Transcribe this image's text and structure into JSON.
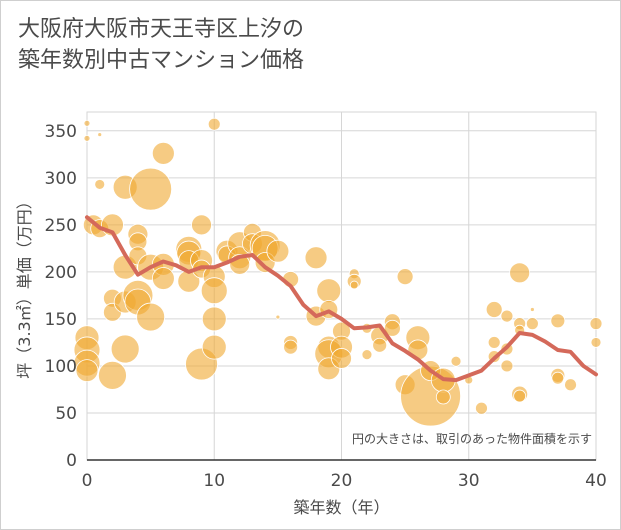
{
  "title": "大阪府大阪市天王寺区上汐の\n築年数別中古マンション価格",
  "chart_data": {
    "type": "scatter",
    "title": "大阪府大阪市天王寺区上汐の築年数別中古マンション価格",
    "xlabel": "築年数（年）",
    "ylabel": "坪（3.3㎡）単価（万円）",
    "xlim": [
      0,
      40
    ],
    "ylim": [
      0,
      370
    ],
    "xticks": [
      0,
      10,
      20,
      30,
      40
    ],
    "yticks": [
      0,
      50,
      100,
      150,
      200,
      250,
      300,
      350
    ],
    "grid": true,
    "annotation": "円の大きさは、取引のあった物件面積を示す",
    "colors": {
      "bubble": "#f0a830",
      "line": "#d4695a",
      "grid": "#d6d6d6"
    },
    "bubbles": [
      {
        "x": 0,
        "y": 358,
        "s": 3
      },
      {
        "x": 0,
        "y": 342,
        "s": 3
      },
      {
        "x": 1,
        "y": 346,
        "s": 2
      },
      {
        "x": 1,
        "y": 293,
        "s": 5
      },
      {
        "x": 0.5,
        "y": 250,
        "s": 10
      },
      {
        "x": 1,
        "y": 246,
        "s": 9
      },
      {
        "x": 2,
        "y": 250,
        "s": 11
      },
      {
        "x": 0,
        "y": 130,
        "s": 12
      },
      {
        "x": 0,
        "y": 117,
        "s": 13
      },
      {
        "x": 0,
        "y": 103,
        "s": 13
      },
      {
        "x": 0,
        "y": 95,
        "s": 11
      },
      {
        "x": 2,
        "y": 90,
        "s": 14
      },
      {
        "x": 2,
        "y": 172,
        "s": 9
      },
      {
        "x": 2,
        "y": 157,
        "s": 9
      },
      {
        "x": 3,
        "y": 290,
        "s": 12
      },
      {
        "x": 3,
        "y": 168,
        "s": 11
      },
      {
        "x": 3,
        "y": 118,
        "s": 14
      },
      {
        "x": 3,
        "y": 205,
        "s": 12
      },
      {
        "x": 4,
        "y": 240,
        "s": 10
      },
      {
        "x": 4,
        "y": 232,
        "s": 9
      },
      {
        "x": 4,
        "y": 217,
        "s": 9
      },
      {
        "x": 4,
        "y": 175,
        "s": 15
      },
      {
        "x": 4,
        "y": 168,
        "s": 13
      },
      {
        "x": 5,
        "y": 288,
        "s": 21
      },
      {
        "x": 5,
        "y": 205,
        "s": 13
      },
      {
        "x": 5,
        "y": 152,
        "s": 14
      },
      {
        "x": 6,
        "y": 326,
        "s": 11
      },
      {
        "x": 6,
        "y": 208,
        "s": 11
      },
      {
        "x": 6,
        "y": 193,
        "s": 11
      },
      {
        "x": 8,
        "y": 224,
        "s": 13
      },
      {
        "x": 8,
        "y": 220,
        "s": 12
      },
      {
        "x": 8,
        "y": 212,
        "s": 10
      },
      {
        "x": 8,
        "y": 190,
        "s": 11
      },
      {
        "x": 9,
        "y": 250,
        "s": 10
      },
      {
        "x": 9,
        "y": 212,
        "s": 11
      },
      {
        "x": 9,
        "y": 203,
        "s": 9
      },
      {
        "x": 9,
        "y": 102,
        "s": 16
      },
      {
        "x": 10,
        "y": 357,
        "s": 6
      },
      {
        "x": 10,
        "y": 195,
        "s": 11
      },
      {
        "x": 10,
        "y": 180,
        "s": 13
      },
      {
        "x": 10,
        "y": 150,
        "s": 12
      },
      {
        "x": 10,
        "y": 120,
        "s": 12
      },
      {
        "x": 11,
        "y": 222,
        "s": 11
      },
      {
        "x": 11,
        "y": 218,
        "s": 9
      },
      {
        "x": 12,
        "y": 230,
        "s": 12
      },
      {
        "x": 12,
        "y": 215,
        "s": 11
      },
      {
        "x": 12,
        "y": 208,
        "s": 10
      },
      {
        "x": 13,
        "y": 242,
        "s": 9
      },
      {
        "x": 13,
        "y": 230,
        "s": 10
      },
      {
        "x": 14,
        "y": 228,
        "s": 15
      },
      {
        "x": 14,
        "y": 225,
        "s": 13
      },
      {
        "x": 14,
        "y": 210,
        "s": 10
      },
      {
        "x": 15,
        "y": 222,
        "s": 11
      },
      {
        "x": 16,
        "y": 192,
        "s": 8
      },
      {
        "x": 16,
        "y": 125,
        "s": 7
      },
      {
        "x": 16,
        "y": 120,
        "s": 7
      },
      {
        "x": 15,
        "y": 152,
        "s": 2
      },
      {
        "x": 18,
        "y": 215,
        "s": 11
      },
      {
        "x": 18,
        "y": 153,
        "s": 10
      },
      {
        "x": 19,
        "y": 180,
        "s": 12
      },
      {
        "x": 19,
        "y": 160,
        "s": 9
      },
      {
        "x": 19,
        "y": 120,
        "s": 11
      },
      {
        "x": 19,
        "y": 113,
        "s": 14
      },
      {
        "x": 19,
        "y": 97,
        "s": 11
      },
      {
        "x": 20,
        "y": 137,
        "s": 9
      },
      {
        "x": 20,
        "y": 120,
        "s": 11
      },
      {
        "x": 20,
        "y": 108,
        "s": 10
      },
      {
        "x": 21,
        "y": 198,
        "s": 5
      },
      {
        "x": 21,
        "y": 190,
        "s": 7
      },
      {
        "x": 21,
        "y": 186,
        "s": 4
      },
      {
        "x": 22,
        "y": 112,
        "s": 5
      },
      {
        "x": 22,
        "y": 140,
        "s": 5
      },
      {
        "x": 23,
        "y": 132,
        "s": 9
      },
      {
        "x": 23,
        "y": 122,
        "s": 7
      },
      {
        "x": 24,
        "y": 147,
        "s": 8
      },
      {
        "x": 24,
        "y": 140,
        "s": 8
      },
      {
        "x": 25,
        "y": 195,
        "s": 8
      },
      {
        "x": 25,
        "y": 80,
        "s": 10
      },
      {
        "x": 26,
        "y": 130,
        "s": 12
      },
      {
        "x": 26,
        "y": 117,
        "s": 10
      },
      {
        "x": 27,
        "y": 68,
        "s": 30
      },
      {
        "x": 27,
        "y": 95,
        "s": 10
      },
      {
        "x": 28,
        "y": 85,
        "s": 12
      },
      {
        "x": 28,
        "y": 67,
        "s": 7
      },
      {
        "x": 29,
        "y": 105,
        "s": 5
      },
      {
        "x": 30,
        "y": 85,
        "s": 4
      },
      {
        "x": 31,
        "y": 55,
        "s": 6
      },
      {
        "x": 32,
        "y": 160,
        "s": 8
      },
      {
        "x": 32,
        "y": 125,
        "s": 6
      },
      {
        "x": 32,
        "y": 110,
        "s": 6
      },
      {
        "x": 33,
        "y": 153,
        "s": 6
      },
      {
        "x": 33,
        "y": 118,
        "s": 6
      },
      {
        "x": 33,
        "y": 100,
        "s": 6
      },
      {
        "x": 34,
        "y": 199,
        "s": 10
      },
      {
        "x": 34,
        "y": 145,
        "s": 6
      },
      {
        "x": 34,
        "y": 138,
        "s": 5
      },
      {
        "x": 34,
        "y": 70,
        "s": 8
      },
      {
        "x": 34,
        "y": 68,
        "s": 6
      },
      {
        "x": 35,
        "y": 145,
        "s": 6
      },
      {
        "x": 35,
        "y": 160,
        "s": 2
      },
      {
        "x": 37,
        "y": 148,
        "s": 7
      },
      {
        "x": 37,
        "y": 90,
        "s": 7
      },
      {
        "x": 37,
        "y": 87,
        "s": 6
      },
      {
        "x": 38,
        "y": 80,
        "s": 6
      },
      {
        "x": 40,
        "y": 145,
        "s": 6
      },
      {
        "x": 40,
        "y": 125,
        "s": 5
      }
    ],
    "trend": {
      "x": [
        0,
        1,
        2,
        3,
        4,
        5,
        6,
        7,
        8,
        9,
        10,
        11,
        12,
        13,
        14,
        15,
        16,
        17,
        18,
        19,
        20,
        21,
        22,
        23,
        24,
        25,
        26,
        27,
        28,
        29,
        30,
        31,
        32,
        33,
        34,
        35,
        36,
        37,
        38,
        39,
        40
      ],
      "y": [
        258,
        247,
        242,
        218,
        197,
        205,
        211,
        207,
        200,
        205,
        205,
        210,
        216,
        218,
        205,
        196,
        185,
        165,
        153,
        158,
        150,
        140,
        141,
        143,
        124,
        116,
        107,
        95,
        86,
        85,
        90,
        95,
        108,
        120,
        135,
        133,
        126,
        117,
        115,
        100,
        91
      ]
    }
  }
}
